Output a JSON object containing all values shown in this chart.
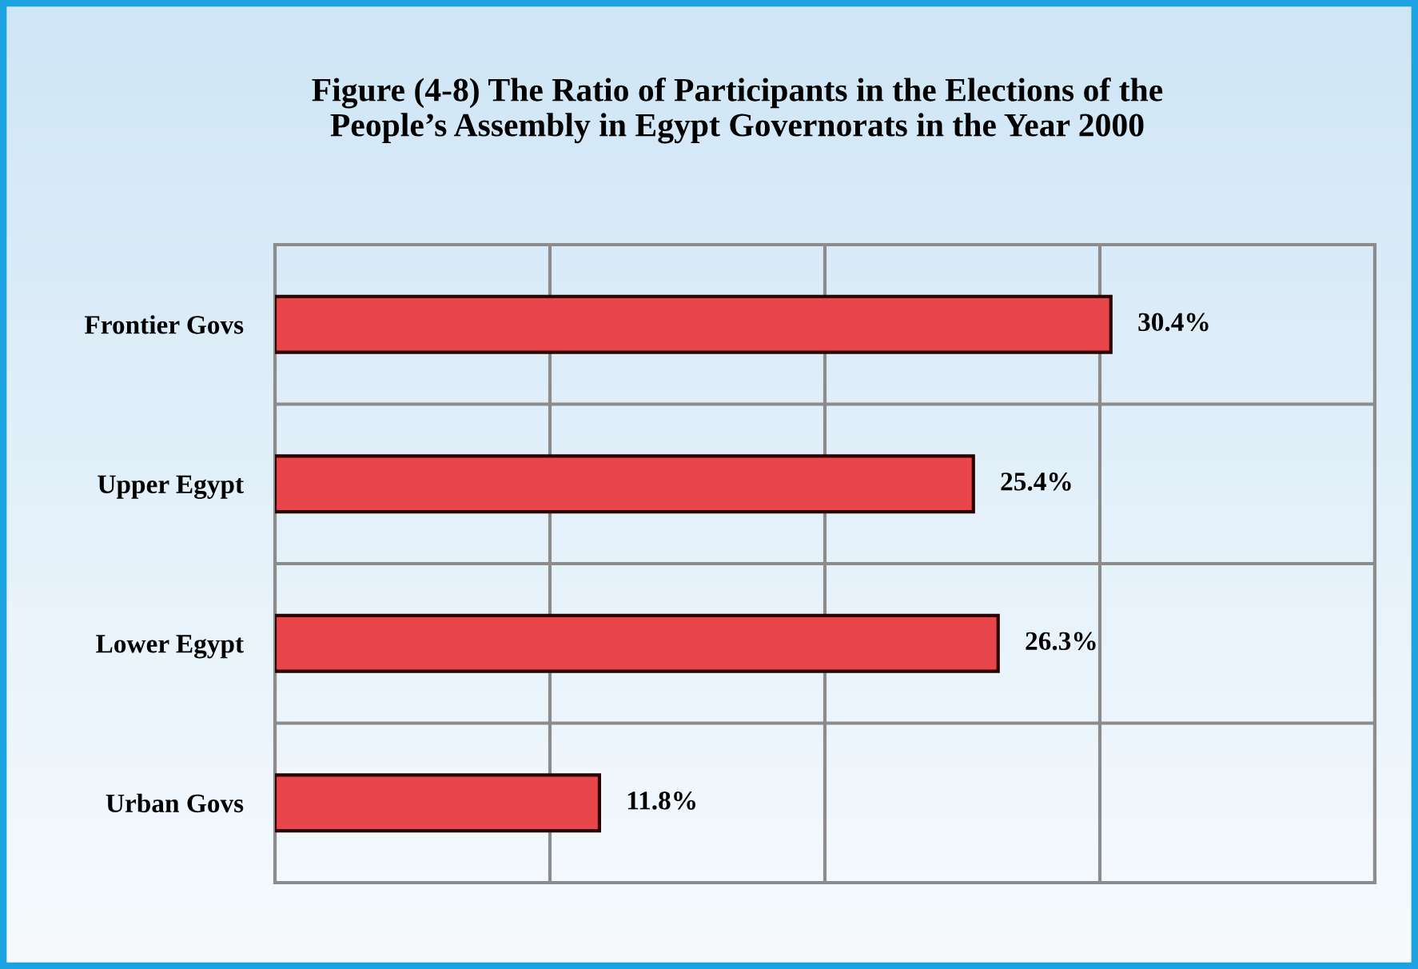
{
  "chart_data": {
    "type": "bar",
    "orientation": "horizontal",
    "title": "Figure (4-8) The Ratio of Participants in the Elections of the\nPeople’s Assembly in Egypt Governorats in the Year 2000",
    "categories": [
      "Frontier Govs",
      "Upper Egypt",
      "Lower Egypt",
      "Urban Govs"
    ],
    "values": [
      30.4,
      25.4,
      26.3,
      11.8
    ],
    "value_labels": [
      "30.4%",
      "25.4%",
      "26.3%",
      "11.8%"
    ],
    "color": "#e8464a",
    "xlim": [
      0,
      40
    ],
    "xticks": [
      {
        "value": 0,
        "label": null
      },
      {
        "value": 10,
        "label": null
      },
      {
        "value": 20,
        "label": null
      },
      {
        "value": 30,
        "label": null
      },
      {
        "value": 40,
        "label": null
      }
    ],
    "grid": true,
    "tick_labels": "y"
  }
}
